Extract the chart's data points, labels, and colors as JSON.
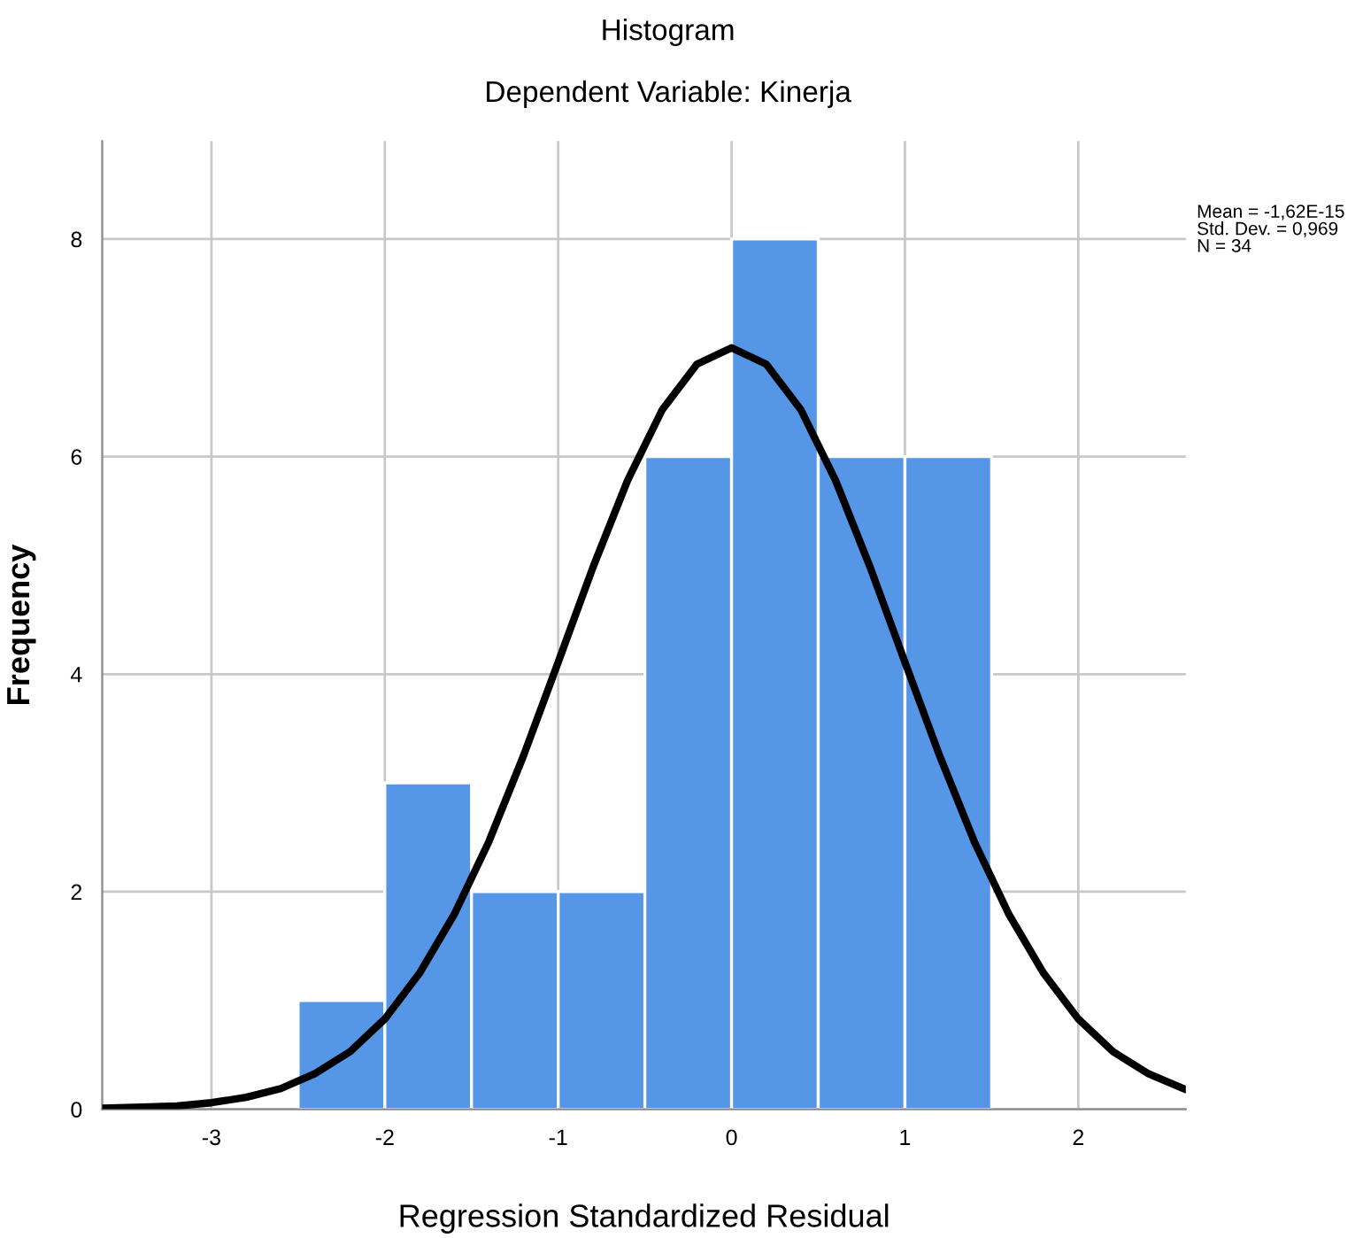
{
  "chart_data": {
    "type": "histogram",
    "title": "Histogram",
    "subtitle": "Dependent Variable: Kinerja",
    "xlabel": "Regression Standardized Residual",
    "ylabel": "Frequency",
    "bins": [
      -2.5,
      -2.0,
      -1.5,
      -1.0,
      -0.5,
      0.0,
      0.5,
      1.0,
      1.5
    ],
    "values": [
      1,
      3,
      2,
      2,
      6,
      8,
      6,
      6
    ],
    "color": "#5596e6",
    "series": [
      {
        "type": "line",
        "color": "#000000",
        "x": [
          -3.63,
          -3.4,
          -3.2,
          -3.0,
          -2.8,
          -2.6,
          -2.4,
          -2.2,
          -2.0,
          -1.8,
          -1.6,
          -1.4,
          -1.2,
          -1.0,
          -0.8,
          -0.6,
          -0.4,
          -0.2,
          0.0,
          0.2,
          0.4,
          0.6,
          0.8,
          1.0,
          1.2,
          1.4,
          1.6,
          1.8,
          2.0,
          2.2,
          2.4,
          2.62
        ],
        "values": [
          0.01,
          0.02,
          0.03,
          0.06,
          0.11,
          0.19,
          0.33,
          0.53,
          0.83,
          1.25,
          1.79,
          2.46,
          3.25,
          4.11,
          4.98,
          5.78,
          6.43,
          6.85,
          7.0,
          6.85,
          6.43,
          5.78,
          4.98,
          4.11,
          3.25,
          2.46,
          1.79,
          1.25,
          0.83,
          0.53,
          0.33,
          0.18
        ]
      }
    ],
    "xlim": [
      -3.63,
      2.62
    ],
    "ylim": [
      0,
      8.9
    ],
    "xticks": [
      -3,
      -2,
      -1,
      0,
      1,
      2
    ],
    "yticks": [
      0,
      2,
      4,
      6,
      8
    ],
    "grid": true,
    "annotations": [
      "Mean = -1,62E-15\nStd. Dev. = 0,969\nN = 34"
    ]
  }
}
